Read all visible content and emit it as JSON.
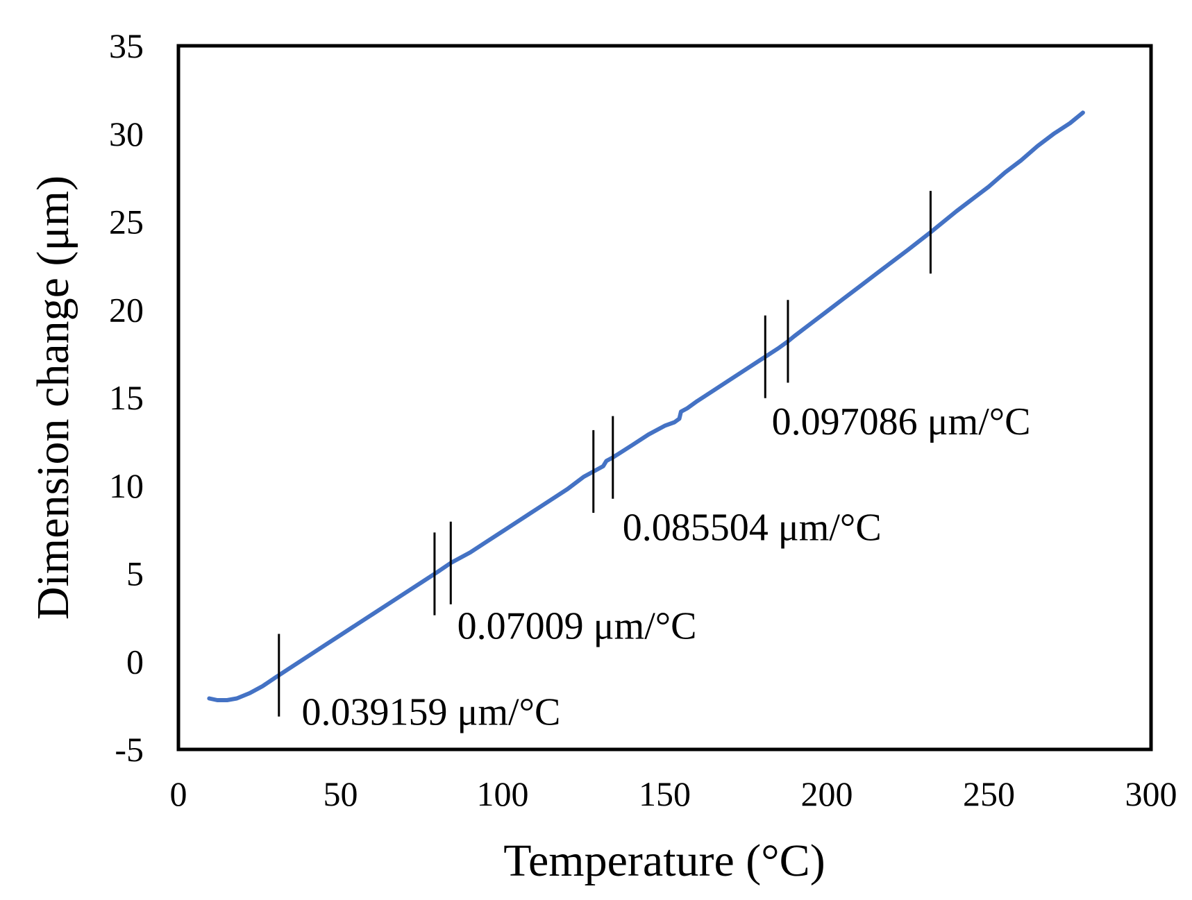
{
  "chart_data": {
    "type": "line",
    "title": "",
    "xlabel": "Temperature (°C)",
    "ylabel": "Dimension change (μm)",
    "xlim": [
      0,
      300
    ],
    "ylim": [
      -5,
      35
    ],
    "xticks": [
      0,
      50,
      100,
      150,
      200,
      250,
      300
    ],
    "yticks": [
      -5,
      0,
      5,
      10,
      15,
      20,
      25,
      30,
      35
    ],
    "xtick_labels": [
      "0",
      "50",
      "100",
      "150",
      "200",
      "250",
      "300"
    ],
    "ytick_labels": [
      "-5",
      "0",
      "5",
      "10",
      "15",
      "20",
      "25",
      "30",
      "35"
    ],
    "grid": false,
    "legend": "none",
    "series": [
      {
        "name": "Dimension change",
        "color": "#4472C4",
        "x": [
          9.5,
          12,
          15,
          18,
          22,
          26,
          30,
          35,
          40,
          45,
          50,
          55,
          60,
          65,
          70,
          75,
          80,
          84,
          90,
          95,
          100,
          105,
          110,
          115,
          120,
          125,
          128,
          131,
          132,
          134,
          140,
          145,
          150,
          153,
          154.5,
          155,
          157,
          160,
          165,
          170,
          175,
          180,
          185,
          188,
          190,
          195,
          200,
          205,
          210,
          215,
          220,
          225,
          232,
          240,
          245,
          250,
          255,
          260,
          265,
          270,
          275,
          279
        ],
        "y": [
          -2.1,
          -2.2,
          -2.2,
          -2.1,
          -1.8,
          -1.4,
          -0.9,
          -0.3,
          0.3,
          0.9,
          1.5,
          2.1,
          2.7,
          3.3,
          3.9,
          4.5,
          5.1,
          5.6,
          6.2,
          6.8,
          7.4,
          8.0,
          8.6,
          9.2,
          9.8,
          10.5,
          10.8,
          11.1,
          11.4,
          11.6,
          12.3,
          12.9,
          13.4,
          13.6,
          13.8,
          14.2,
          14.4,
          14.8,
          15.4,
          16.0,
          16.6,
          17.2,
          17.8,
          18.2,
          18.5,
          19.2,
          19.9,
          20.6,
          21.3,
          22.0,
          22.7,
          23.4,
          24.4,
          25.6,
          26.3,
          27.0,
          27.8,
          28.5,
          29.3,
          30.0,
          30.6,
          31.2
        ]
      }
    ],
    "markers": [
      31,
      79,
      84,
      128,
      134,
      181,
      188,
      232
    ],
    "annotations": [
      {
        "text": "0.039159 μm/°C",
        "x": 38,
        "y": -3.6
      },
      {
        "text": "0.07009 μm/°C",
        "x": 86,
        "y": 1.3
      },
      {
        "text": "0.085504 μm/°C",
        "x": 137,
        "y": 6.9
      },
      {
        "text": "0.097086 μm/°C",
        "x": 183,
        "y": 12.9
      }
    ]
  }
}
